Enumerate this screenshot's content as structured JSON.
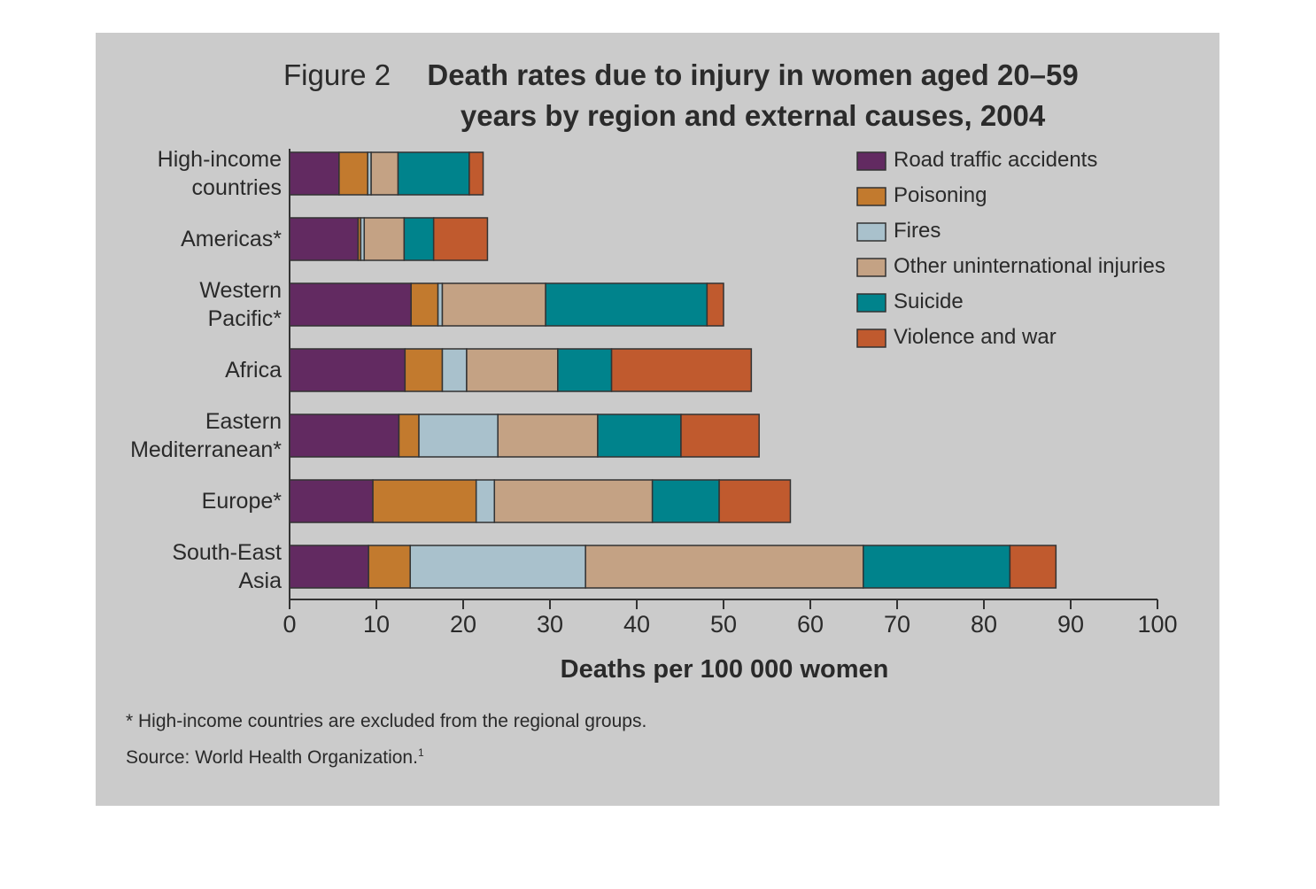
{
  "chart_data": {
    "type": "stacked_barh",
    "figure_label": "Figure 2",
    "title": "Death rates due to injury in women aged 20–59 years by region and external causes, 2004",
    "categories": [
      "High-income countries",
      "Americas*",
      "Western Pacific*",
      "Africa",
      "Eastern Mediterranean*",
      "Europe*",
      "South-East Asia"
    ],
    "series": [
      {
        "name": "Road traffic accidents",
        "color": "#622a61",
        "values": [
          5.7,
          7.9,
          14.0,
          13.3,
          12.6,
          9.6,
          9.1
        ]
      },
      {
        "name": "Poisoning",
        "color": "#c27a2e",
        "values": [
          3.3,
          0.3,
          3.1,
          4.3,
          2.3,
          11.9,
          4.8
        ]
      },
      {
        "name": "Fires",
        "color": "#a9c1cc",
        "values": [
          0.4,
          0.4,
          0.5,
          2.8,
          9.1,
          2.1,
          20.2
        ]
      },
      {
        "name": "Other uninternational injuries",
        "color": "#c4a284",
        "values": [
          3.1,
          4.6,
          11.9,
          10.5,
          11.5,
          18.2,
          32.0
        ]
      },
      {
        "name": "Suicide",
        "color": "#00838c",
        "values": [
          8.2,
          3.4,
          18.6,
          6.2,
          9.6,
          7.7,
          16.9
        ]
      },
      {
        "name": "Violence and war",
        "color": "#c05a2e",
        "values": [
          1.6,
          6.2,
          1.9,
          16.1,
          9.0,
          8.2,
          5.3
        ]
      }
    ],
    "xlim": [
      0,
      100
    ],
    "xticks": [
      0,
      10,
      20,
      30,
      40,
      50,
      60,
      70,
      80,
      90,
      100
    ],
    "xlabel": "Deaths per 100 000 women",
    "legend": "top-right",
    "note": "* High-income countries are excluded from the regional groups.",
    "source": "Source: World Health Organization.",
    "source_ref": "1"
  }
}
